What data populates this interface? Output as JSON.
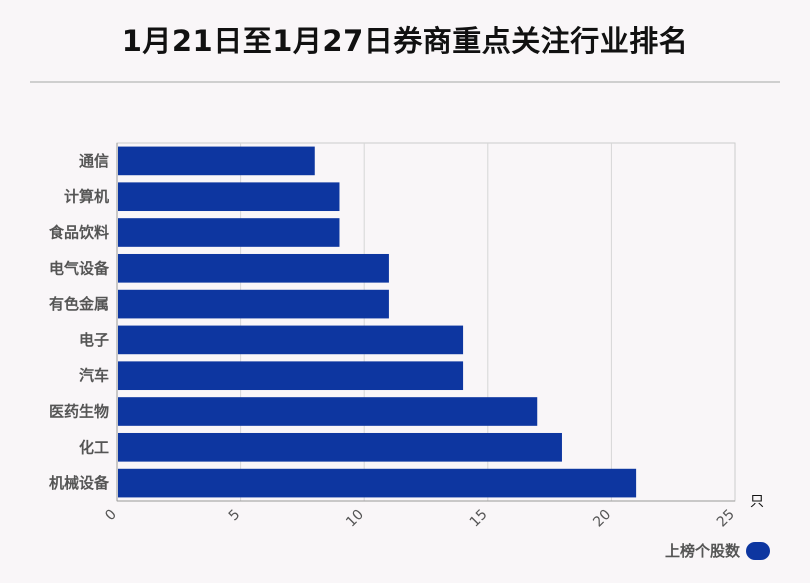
{
  "title": "1月21日至1月27日券商重点关注行业排名",
  "chart_data": {
    "type": "bar",
    "orientation": "horizontal",
    "title": "1月21日至1月27日券商重点关注行业排名",
    "categories": [
      "通信",
      "计算机",
      "食品饮料",
      "电气设备",
      "有色金属",
      "电子",
      "汽车",
      "医药生物",
      "化工",
      "机械设备"
    ],
    "series": [
      {
        "name": "上榜个股数",
        "values": [
          8,
          9,
          9,
          11,
          11,
          14,
          14,
          17,
          18,
          21
        ]
      }
    ],
    "xlim": [
      0,
      25
    ],
    "xticks": [
      "0",
      "5",
      "10",
      "15",
      "20",
      "25"
    ],
    "xunit": "只",
    "grid": true,
    "legend_position": "bottom-right",
    "bar_color": "#0d36a0"
  }
}
